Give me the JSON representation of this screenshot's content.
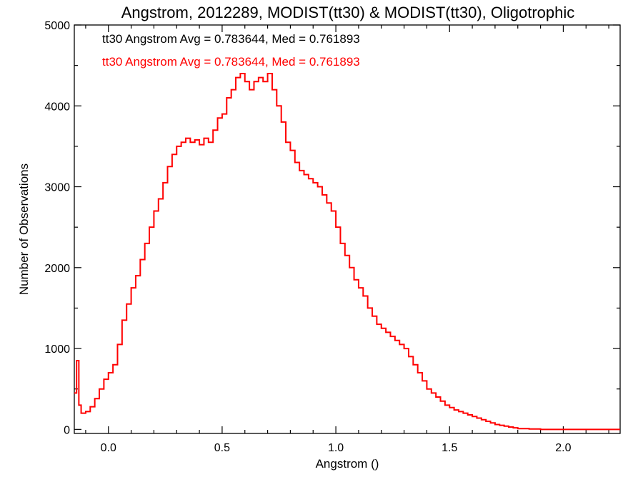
{
  "chart_data": {
    "type": "histogram",
    "title": "Angstrom, 2012289, MODIST(tt30) & MODIST(tt30), Oligotrophic",
    "xlabel": "Angstrom ()",
    "ylabel": "Number of Observations",
    "xlim": [
      -0.15,
      2.25
    ],
    "ylim": [
      -50,
      5000
    ],
    "xticks": [
      0.0,
      0.5,
      1.0,
      1.5,
      2.0
    ],
    "xtick_labels": [
      "0.0",
      "0.5",
      "1.0",
      "1.5",
      "2.0"
    ],
    "yticks": [
      0,
      1000,
      2000,
      3000,
      4000,
      5000
    ],
    "ytick_labels": [
      "0",
      "1000",
      "2000",
      "3000",
      "4000",
      "5000"
    ],
    "annotations": [
      {
        "text": "tt30 Angstrom Avg = 0.783644, Med = 0.761893",
        "color": "#000000"
      },
      {
        "text": "tt30 Angstrom Avg = 0.783644, Med = 0.761893",
        "color": "#ff0000"
      }
    ],
    "series": [
      {
        "color": "#ff0000",
        "x": [
          -0.15,
          -0.14,
          -0.13,
          -0.12,
          -0.1,
          -0.08,
          -0.06,
          -0.04,
          -0.02,
          0.0,
          0.02,
          0.04,
          0.06,
          0.08,
          0.1,
          0.12,
          0.14,
          0.16,
          0.18,
          0.2,
          0.22,
          0.24,
          0.26,
          0.28,
          0.3,
          0.32,
          0.34,
          0.36,
          0.38,
          0.4,
          0.42,
          0.44,
          0.46,
          0.48,
          0.5,
          0.52,
          0.54,
          0.56,
          0.58,
          0.6,
          0.62,
          0.64,
          0.66,
          0.68,
          0.7,
          0.72,
          0.74,
          0.76,
          0.78,
          0.8,
          0.82,
          0.84,
          0.86,
          0.88,
          0.9,
          0.92,
          0.94,
          0.96,
          0.98,
          1.0,
          1.02,
          1.04,
          1.06,
          1.08,
          1.1,
          1.12,
          1.14,
          1.16,
          1.18,
          1.2,
          1.22,
          1.24,
          1.26,
          1.28,
          1.3,
          1.32,
          1.34,
          1.36,
          1.38,
          1.4,
          1.42,
          1.44,
          1.46,
          1.48,
          1.5,
          1.52,
          1.54,
          1.56,
          1.58,
          1.6,
          1.62,
          1.64,
          1.66,
          1.68,
          1.7,
          1.72,
          1.74,
          1.76,
          1.78,
          1.8,
          1.85,
          1.9,
          1.95,
          2.0,
          2.05,
          2.1,
          2.15,
          2.2,
          2.25
        ],
        "y": [
          450,
          850,
          300,
          200,
          220,
          280,
          380,
          500,
          620,
          700,
          800,
          1050,
          1350,
          1550,
          1750,
          1900,
          2100,
          2300,
          2500,
          2700,
          2850,
          3050,
          3250,
          3400,
          3500,
          3550,
          3600,
          3550,
          3580,
          3520,
          3600,
          3550,
          3700,
          3850,
          3900,
          4100,
          4200,
          4350,
          4400,
          4300,
          4200,
          4300,
          4350,
          4300,
          4400,
          4200,
          4000,
          3800,
          3550,
          3450,
          3300,
          3200,
          3150,
          3100,
          3050,
          3000,
          2900,
          2800,
          2700,
          2500,
          2300,
          2150,
          2000,
          1850,
          1750,
          1650,
          1500,
          1400,
          1300,
          1250,
          1200,
          1150,
          1100,
          1050,
          1000,
          900,
          800,
          700,
          600,
          500,
          450,
          400,
          350,
          300,
          270,
          240,
          220,
          200,
          180,
          160,
          140,
          120,
          100,
          80,
          60,
          50,
          40,
          30,
          20,
          10,
          5,
          0,
          0,
          0,
          0,
          0,
          0,
          0,
          0
        ]
      }
    ]
  }
}
